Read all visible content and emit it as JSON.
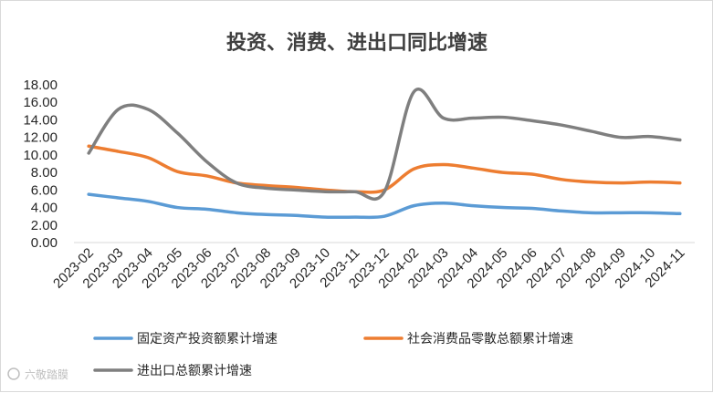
{
  "chart_data": {
    "type": "line",
    "title": "投资、消费、进出口同比增速",
    "xlabel": "",
    "ylabel": "",
    "ylim": [
      0,
      18
    ],
    "yticks": [
      "0.00",
      "2.00",
      "4.00",
      "6.00",
      "8.00",
      "10.00",
      "12.00",
      "14.00",
      "16.00",
      "18.00"
    ],
    "grid": false,
    "legend_position": "bottom",
    "categories": [
      "2023-02",
      "2023-03",
      "2023-04",
      "2023-05",
      "2023-06",
      "2023-07",
      "2023-08",
      "2023-09",
      "2023-10",
      "2023-11",
      "2023-12",
      "2024-02",
      "2024-03",
      "2024-04",
      "2024-05",
      "2024-06",
      "2024-07",
      "2024-08",
      "2024-09",
      "2024-10",
      "2024-11"
    ],
    "series": [
      {
        "name": "固定资产投资额累计增速",
        "color": "#5b9bd5",
        "values": [
          5.5,
          5.1,
          4.7,
          4.0,
          3.8,
          3.4,
          3.2,
          3.1,
          2.9,
          2.9,
          3.0,
          4.2,
          4.5,
          4.2,
          4.0,
          3.9,
          3.6,
          3.4,
          3.4,
          3.4,
          3.3
        ]
      },
      {
        "name": "社会消费品零散总额累计增速",
        "color": "#ed7d31",
        "values": [
          11.0,
          10.4,
          9.7,
          8.1,
          7.6,
          6.8,
          6.5,
          6.3,
          6.0,
          5.8,
          6.0,
          8.4,
          8.9,
          8.5,
          8.0,
          7.8,
          7.2,
          6.9,
          6.8,
          6.9,
          6.8
        ]
      },
      {
        "name": "进出口总额累计增速",
        "color": "#7f7f7f",
        "values": [
          10.2,
          15.2,
          15.2,
          12.5,
          9.2,
          6.8,
          6.2,
          6.0,
          5.8,
          5.8,
          5.8,
          17.2,
          14.2,
          14.2,
          14.3,
          13.9,
          13.4,
          12.7,
          12.0,
          12.1,
          11.7
        ]
      }
    ]
  },
  "watermark": "六敬踏膜"
}
